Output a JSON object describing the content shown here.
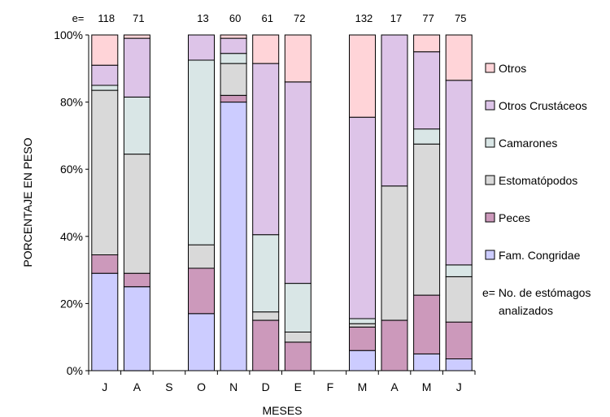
{
  "chart_data": {
    "type": "bar",
    "stacked": true,
    "percent": true,
    "xlabel": "MESES",
    "ylabel": "PORCENTAJE EN PESO",
    "ylim": [
      0,
      100
    ],
    "yticks": [
      "0%",
      "20%",
      "40%",
      "60%",
      "80%",
      "100%"
    ],
    "grid": false,
    "legend_position": "right",
    "sample_prefix": "e=",
    "categories": [
      "J",
      "A",
      "S",
      "O",
      "N",
      "D",
      "E",
      "F",
      "M",
      "A",
      "M",
      "J"
    ],
    "sample_sizes": [
      "118",
      "71",
      "",
      "13",
      "60",
      "61",
      "72",
      "",
      "132",
      "17",
      "77",
      "75"
    ],
    "series": [
      {
        "name": "Fam. Congridae",
        "color": "#ccccff",
        "values": [
          29,
          25,
          null,
          17,
          80,
          0,
          0,
          null,
          6,
          0,
          5,
          3.5
        ]
      },
      {
        "name": "Peces",
        "color": "#cc99bb",
        "values": [
          5.5,
          4,
          null,
          13.5,
          2,
          15,
          8.5,
          null,
          7,
          15,
          17.5,
          11
        ]
      },
      {
        "name": "Estomatópodos",
        "color": "#d9d9d9",
        "values": [
          49,
          35.5,
          null,
          7,
          9.5,
          2.5,
          3,
          null,
          1,
          40,
          45,
          13.5
        ]
      },
      {
        "name": "Camarones",
        "color": "#d9e6e6",
        "values": [
          1.5,
          17,
          null,
          55,
          3,
          23,
          14.5,
          null,
          1.5,
          0,
          4.5,
          3.5
        ]
      },
      {
        "name": "Otros Crustáceos",
        "color": "#ddc4e8",
        "values": [
          6,
          17.5,
          null,
          7.5,
          4.5,
          51,
          60,
          null,
          60,
          45,
          23,
          55
        ]
      },
      {
        "name": "Otros",
        "color": "#ffd4d8",
        "values": [
          9,
          1,
          null,
          0,
          1,
          8.5,
          14,
          null,
          24.5,
          0,
          5,
          13.5
        ]
      }
    ],
    "legend_extra": {
      "prefix": "e=",
      "lines": [
        "No. de estómagos",
        "analizados"
      ]
    }
  }
}
